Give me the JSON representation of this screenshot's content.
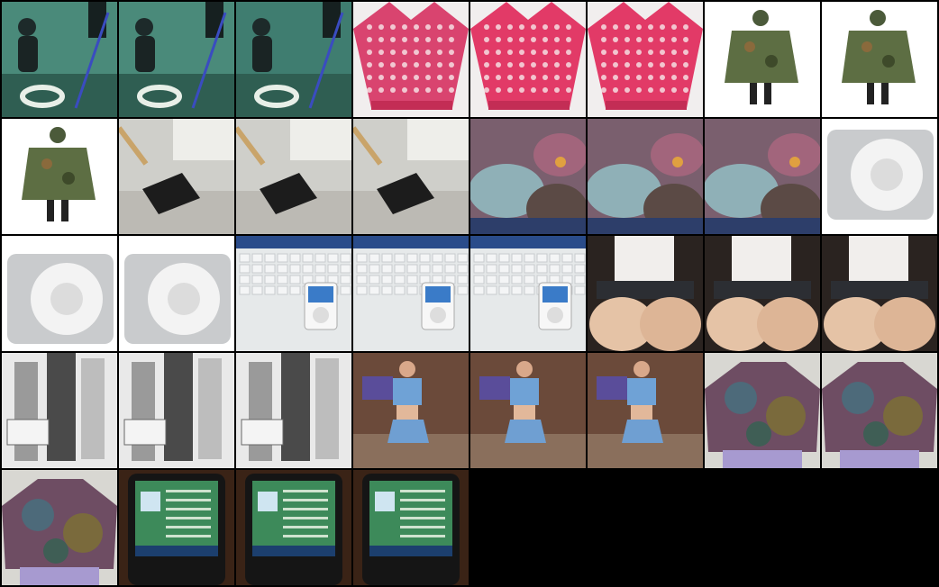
{
  "grid": {
    "columns": 8,
    "background": "#000000",
    "tiles": [
      {
        "subject": "diver",
        "variant": 0
      },
      {
        "subject": "diver",
        "variant": 1
      },
      {
        "subject": "diver",
        "variant": 2
      },
      {
        "subject": "pink-knit",
        "variant": 0
      },
      {
        "subject": "pink-knit",
        "variant": 1
      },
      {
        "subject": "pink-knit",
        "variant": 2
      },
      {
        "subject": "camo-poncho",
        "variant": 0
      },
      {
        "subject": "camo-poncho",
        "variant": 1
      },
      {
        "subject": "camo-poncho",
        "variant": 2
      },
      {
        "subject": "office-clip",
        "variant": 0
      },
      {
        "subject": "office-clip",
        "variant": 1
      },
      {
        "subject": "office-clip",
        "variant": 2
      },
      {
        "subject": "coral-reef",
        "variant": 0
      },
      {
        "subject": "coral-reef",
        "variant": 1
      },
      {
        "subject": "coral-reef",
        "variant": 2
      },
      {
        "subject": "ipod-shuffle",
        "variant": 0
      },
      {
        "subject": "ipod-shuffle",
        "variant": 1
      },
      {
        "subject": "ipod-shuffle",
        "variant": 2
      },
      {
        "subject": "ipod-keyboard",
        "variant": 0
      },
      {
        "subject": "ipod-keyboard",
        "variant": 1
      },
      {
        "subject": "ipod-keyboard",
        "variant": 2
      },
      {
        "subject": "seated-person",
        "variant": 0
      },
      {
        "subject": "seated-person",
        "variant": 1
      },
      {
        "subject": "seated-person",
        "variant": 2
      },
      {
        "subject": "bw-group",
        "variant": 0
      },
      {
        "subject": "bw-group",
        "variant": 1
      },
      {
        "subject": "bw-group",
        "variant": 2
      },
      {
        "subject": "girl-blue",
        "variant": 0
      },
      {
        "subject": "girl-blue",
        "variant": 1
      },
      {
        "subject": "girl-blue",
        "variant": 2
      },
      {
        "subject": "scarf",
        "variant": 0
      },
      {
        "subject": "scarf",
        "variant": 1
      },
      {
        "subject": "scarf",
        "variant": 2
      },
      {
        "subject": "media-player",
        "variant": 0
      },
      {
        "subject": "media-player",
        "variant": 1
      },
      {
        "subject": "media-player",
        "variant": 2
      }
    ]
  }
}
